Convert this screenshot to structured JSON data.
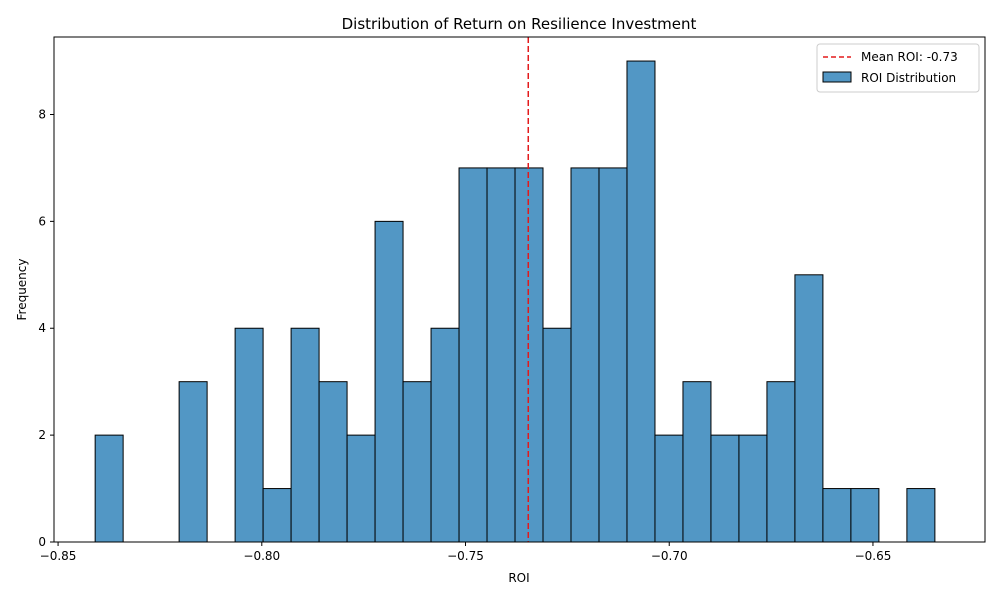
{
  "chart_data": {
    "type": "bar",
    "title": "Distribution of Return on Resilience Investment",
    "xlabel": "ROI",
    "ylabel": "Frequency",
    "xlim": [
      -0.851,
      -0.6225
    ],
    "ylim": [
      0,
      9.45
    ],
    "x_ticks": [
      -0.85,
      -0.8,
      -0.75,
      -0.7,
      -0.65
    ],
    "x_tick_labels": [
      "−0.85",
      "−0.80",
      "−0.75",
      "−0.70",
      "−0.65"
    ],
    "y_ticks": [
      0,
      2,
      4,
      6,
      8
    ],
    "y_tick_labels": [
      "0",
      "2",
      "4",
      "6",
      "8"
    ],
    "grid": false,
    "legend_position": "top-right",
    "bin_start": -0.8409,
    "bin_width": 0.00687,
    "series": [
      {
        "name": "ROI Distribution",
        "color": "#5297c5",
        "edge_color": "#000000",
        "values": [
          2,
          0,
          0,
          3,
          0,
          4,
          1,
          4,
          3,
          2,
          6,
          3,
          4,
          7,
          7,
          7,
          4,
          7,
          7,
          9,
          2,
          3,
          2,
          2,
          3,
          5,
          1,
          1,
          0,
          1
        ]
      }
    ],
    "mean_line": {
      "label": "Mean ROI: -0.73",
      "value": -0.7346,
      "color": "#e31a1c",
      "style": "dashed"
    }
  }
}
